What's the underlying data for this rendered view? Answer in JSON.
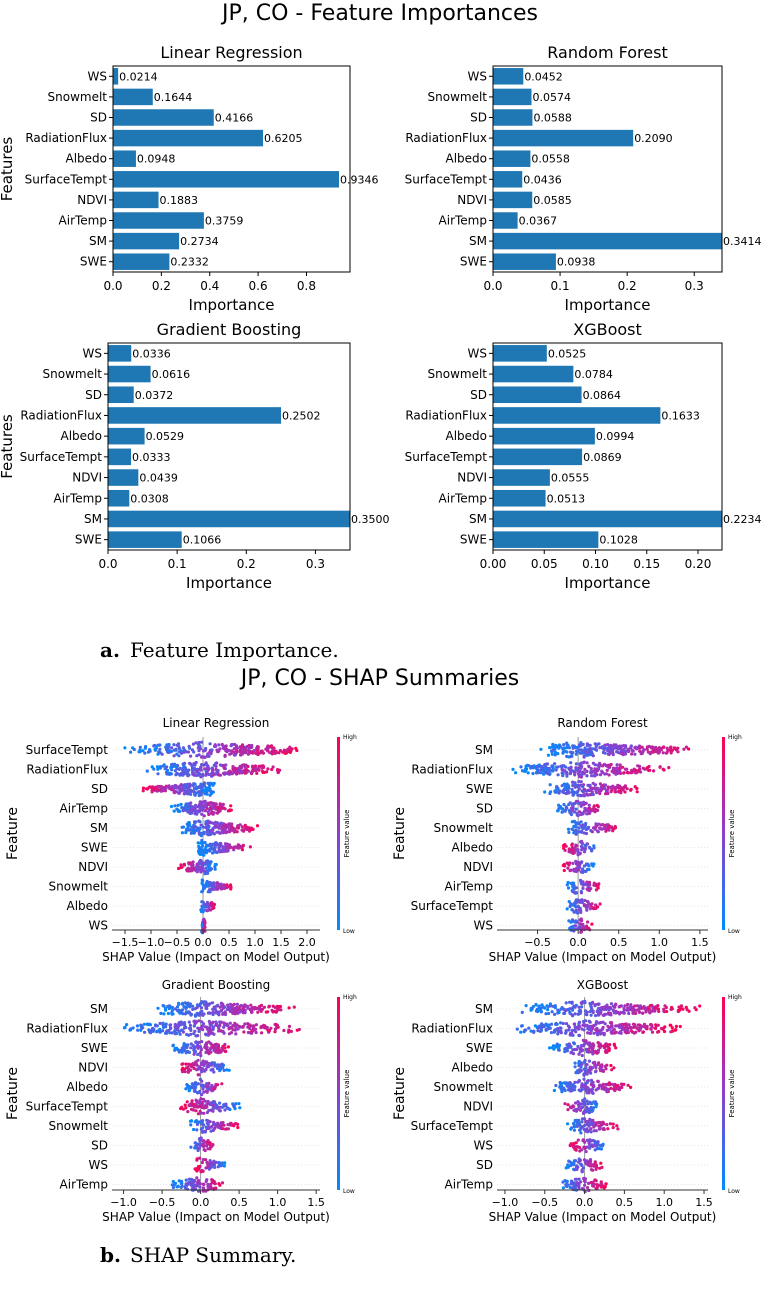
{
  "figure_a": {
    "title": "JP, CO - Feature Importances",
    "caption_letter": "a.",
    "caption_text": "Feature Importance."
  },
  "figure_b": {
    "title": "JP, CO - SHAP Summaries",
    "caption_letter": "b.",
    "caption_text": "SHAP Summary."
  },
  "colors": {
    "bar": "#1f77b4",
    "shap_high": "#ff0052",
    "shap_low": "#008bfb"
  },
  "chart_data": [
    {
      "type": "bar",
      "orientation": "horizontal",
      "title": "Linear Regression",
      "xlabel": "Importance",
      "ylabel": "Features",
      "categories": [
        "WS",
        "Snowmelt",
        "SD",
        "RadiationFlux",
        "Albedo",
        "SurfaceTempt",
        "NDVI",
        "AirTemp",
        "SM",
        "SWE"
      ],
      "values": [
        0.0214,
        0.1644,
        0.4166,
        0.6205,
        0.0948,
        0.9346,
        0.1883,
        0.3759,
        0.2734,
        0.2332
      ],
      "labels": [
        "0.0214",
        "0.1644",
        "0.4166",
        "0.6205",
        "0.0948",
        "0.9346",
        "0.1883",
        "0.3759",
        "0.2734",
        "0.2332"
      ],
      "xlim": [
        0,
        0.98
      ],
      "xticks": [
        0,
        0.2,
        0.4,
        0.6,
        0.8
      ],
      "xtick_labels": [
        "0.0",
        "0.2",
        "0.4",
        "0.6",
        "0.8"
      ]
    },
    {
      "type": "bar",
      "orientation": "horizontal",
      "title": "Random Forest",
      "xlabel": "Importance",
      "ylabel": "",
      "categories": [
        "WS",
        "Snowmelt",
        "SD",
        "RadiationFlux",
        "Albedo",
        "SurfaceTempt",
        "NDVI",
        "AirTemp",
        "SM",
        "SWE"
      ],
      "values": [
        0.0452,
        0.0574,
        0.0588,
        0.209,
        0.0558,
        0.0436,
        0.0585,
        0.0367,
        0.3414,
        0.0938
      ],
      "labels": [
        "0.0452",
        "0.0574",
        "0.0588",
        "0.2090",
        "0.0558",
        "0.0436",
        "0.0585",
        "0.0367",
        "0.3414",
        "0.0938"
      ],
      "xlim": [
        0,
        0.3414
      ],
      "xticks": [
        0,
        0.1,
        0.2,
        0.3
      ],
      "xtick_labels": [
        "0.0",
        "0.1",
        "0.2",
        "0.3"
      ]
    },
    {
      "type": "bar",
      "orientation": "horizontal",
      "title": "Gradient Boosting",
      "xlabel": "Importance",
      "ylabel": "Features",
      "categories": [
        "WS",
        "Snowmelt",
        "SD",
        "RadiationFlux",
        "Albedo",
        "SurfaceTempt",
        "NDVI",
        "AirTemp",
        "SM",
        "SWE"
      ],
      "values": [
        0.0336,
        0.0616,
        0.0372,
        0.2502,
        0.0529,
        0.0333,
        0.0439,
        0.0308,
        0.35,
        0.1066
      ],
      "labels": [
        "0.0336",
        "0.0616",
        "0.0372",
        "0.2502",
        "0.0529",
        "0.0333",
        "0.0439",
        "0.0308",
        "0.3500",
        "0.1066"
      ],
      "xlim": [
        0,
        0.35
      ],
      "xticks": [
        0,
        0.1,
        0.2,
        0.3
      ],
      "xtick_labels": [
        "0.0",
        "0.1",
        "0.2",
        "0.3"
      ]
    },
    {
      "type": "bar",
      "orientation": "horizontal",
      "title": "XGBoost",
      "xlabel": "Importance",
      "ylabel": "",
      "categories": [
        "WS",
        "Snowmelt",
        "SD",
        "RadiationFlux",
        "Albedo",
        "SurfaceTempt",
        "NDVI",
        "AirTemp",
        "SM",
        "SWE"
      ],
      "values": [
        0.0525,
        0.0784,
        0.0864,
        0.1633,
        0.0994,
        0.0869,
        0.0555,
        0.0513,
        0.2234,
        0.1028
      ],
      "labels": [
        "0.0525",
        "0.0784",
        "0.0864",
        "0.1633",
        "0.0994",
        "0.0869",
        "0.0555",
        "0.0513",
        "0.2234",
        "0.1028"
      ],
      "xlim": [
        0,
        0.2234
      ],
      "xticks": [
        0,
        0.05,
        0.1,
        0.15,
        0.2
      ],
      "xtick_labels": [
        "0.00",
        "0.05",
        "0.10",
        "0.15",
        "0.20"
      ]
    },
    {
      "type": "scatter",
      "subtype": "shap-beeswarm",
      "title": "Linear Regression",
      "xlabel": "SHAP Value (Impact on Model Output)",
      "ylabel": "Feature",
      "colorbar_label": "Feature value",
      "colorbar_high": "High",
      "colorbar_low": "Low",
      "xlim": [
        -1.75,
        2.25
      ],
      "xticks": [
        -1.5,
        -1,
        -0.5,
        0,
        0.5,
        1,
        1.5,
        2
      ],
      "xtick_labels": [
        "−1.5",
        "−1.0",
        "−0.5",
        "0.0",
        "0.5",
        "1.0",
        "1.5",
        "2.0"
      ],
      "features": [
        {
          "name": "SurfaceTempt",
          "range": [
            -1.55,
            2.1
          ],
          "mode": "posHigh"
        },
        {
          "name": "RadiationFlux",
          "range": [
            -1.1,
            1.6
          ],
          "mode": "posHigh"
        },
        {
          "name": "SD",
          "range": [
            -1.2,
            0.25
          ],
          "mode": "negHigh"
        },
        {
          "name": "AirTemp",
          "range": [
            -0.65,
            0.6
          ],
          "mode": "posHigh"
        },
        {
          "name": "SM",
          "range": [
            -0.45,
            1.1
          ],
          "mode": "posHigh"
        },
        {
          "name": "SWE",
          "range": [
            -0.1,
            0.95
          ],
          "mode": "posHigh"
        },
        {
          "name": "NDVI",
          "range": [
            -0.5,
            0.3
          ],
          "mode": "negHigh"
        },
        {
          "name": "Snowmelt",
          "range": [
            -0.05,
            0.6
          ],
          "mode": "posHigh"
        },
        {
          "name": "Albedo",
          "range": [
            -0.05,
            0.25
          ],
          "mode": "posHigh"
        },
        {
          "name": "WS",
          "range": [
            -0.03,
            0.05
          ],
          "mode": "posHigh"
        }
      ]
    },
    {
      "type": "scatter",
      "subtype": "shap-beeswarm",
      "title": "Random Forest",
      "xlabel": "SHAP Value (Impact on Model Output)",
      "ylabel": "Feature",
      "colorbar_label": "Feature value",
      "colorbar_high": "High",
      "colorbar_low": "Low",
      "xlim": [
        -1.0,
        1.6
      ],
      "xticks": [
        -0.5,
        0,
        0.5,
        1,
        1.5
      ],
      "xtick_labels": [
        "−0.5",
        "0.0",
        "0.5",
        "1.0",
        "1.5"
      ],
      "features": [
        {
          "name": "SM",
          "range": [
            -0.5,
            1.5
          ],
          "mode": "posHigh"
        },
        {
          "name": "RadiationFlux",
          "range": [
            -0.85,
            1.15
          ],
          "mode": "posHigh"
        },
        {
          "name": "SWE",
          "range": [
            -0.45,
            0.8
          ],
          "mode": "posHigh"
        },
        {
          "name": "SD",
          "range": [
            -0.3,
            0.35
          ],
          "mode": "posHigh"
        },
        {
          "name": "Snowmelt",
          "range": [
            -0.15,
            0.55
          ],
          "mode": "posHigh"
        },
        {
          "name": "Albedo",
          "range": [
            -0.2,
            0.25
          ],
          "mode": "negHigh"
        },
        {
          "name": "NDVI",
          "range": [
            -0.2,
            0.2
          ],
          "mode": "negHigh"
        },
        {
          "name": "AirTemp",
          "range": [
            -0.15,
            0.3
          ],
          "mode": "posHigh"
        },
        {
          "name": "SurfaceTempt",
          "range": [
            -0.15,
            0.3
          ],
          "mode": "posHigh"
        },
        {
          "name": "WS",
          "range": [
            -0.15,
            0.2
          ],
          "mode": "posHigh"
        }
      ]
    },
    {
      "type": "scatter",
      "subtype": "shap-beeswarm",
      "title": "Gradient Boosting",
      "xlabel": "SHAP Value (Impact on Model Output)",
      "ylabel": "Feature",
      "colorbar_label": "Feature value",
      "colorbar_high": "High",
      "colorbar_low": "Low",
      "xlim": [
        -1.15,
        1.55
      ],
      "xticks": [
        -1,
        -0.5,
        0,
        0.5,
        1,
        1.5
      ],
      "xtick_labels": [
        "−1.0",
        "−0.5",
        "0.0",
        "0.5",
        "1.0",
        "1.5"
      ],
      "features": [
        {
          "name": "SM",
          "range": [
            -0.6,
            1.25
          ],
          "mode": "posHigh"
        },
        {
          "name": "RadiationFlux",
          "range": [
            -1.1,
            1.45
          ],
          "mode": "posHigh"
        },
        {
          "name": "SWE",
          "range": [
            -0.4,
            0.45
          ],
          "mode": "posHigh"
        },
        {
          "name": "NDVI",
          "range": [
            -0.3,
            0.4
          ],
          "mode": "negHigh"
        },
        {
          "name": "Albedo",
          "range": [
            -0.2,
            0.35
          ],
          "mode": "posHigh"
        },
        {
          "name": "SurfaceTempt",
          "range": [
            -0.3,
            0.55
          ],
          "mode": "negHigh"
        },
        {
          "name": "Snowmelt",
          "range": [
            -0.15,
            0.5
          ],
          "mode": "posHigh"
        },
        {
          "name": "SD",
          "range": [
            -0.15,
            0.2
          ],
          "mode": "posHigh"
        },
        {
          "name": "WS",
          "range": [
            -0.1,
            0.35
          ],
          "mode": "negHigh"
        },
        {
          "name": "AirTemp",
          "range": [
            -0.4,
            0.35
          ],
          "mode": "posHigh"
        }
      ]
    },
    {
      "type": "scatter",
      "subtype": "shap-beeswarm",
      "title": "XGBoost",
      "xlabel": "SHAP Value (Impact on Model Output)",
      "ylabel": "Feature",
      "colorbar_label": "Feature value",
      "colorbar_high": "High",
      "colorbar_low": "Low",
      "xlim": [
        -1.1,
        1.55
      ],
      "xticks": [
        -1,
        -0.5,
        0,
        0.5,
        1,
        1.5
      ],
      "xtick_labels": [
        "−1.0",
        "−0.5",
        "0.0",
        "0.5",
        "1.0",
        "1.5"
      ],
      "features": [
        {
          "name": "SM",
          "range": [
            -0.85,
            1.45
          ],
          "mode": "posHigh"
        },
        {
          "name": "RadiationFlux",
          "range": [
            -0.95,
            1.25
          ],
          "mode": "posHigh"
        },
        {
          "name": "SWE",
          "range": [
            -0.45,
            0.45
          ],
          "mode": "posHigh"
        },
        {
          "name": "Albedo",
          "range": [
            -0.2,
            0.4
          ],
          "mode": "posHigh"
        },
        {
          "name": "Snowmelt",
          "range": [
            -0.45,
            0.6
          ],
          "mode": "posHigh"
        },
        {
          "name": "NDVI",
          "range": [
            -0.3,
            0.2
          ],
          "mode": "negHigh"
        },
        {
          "name": "SurfaceTempt",
          "range": [
            -0.25,
            0.45
          ],
          "mode": "posHigh"
        },
        {
          "name": "WS",
          "range": [
            -0.2,
            0.3
          ],
          "mode": "negHigh"
        },
        {
          "name": "SD",
          "range": [
            -0.25,
            0.25
          ],
          "mode": "posHigh"
        },
        {
          "name": "AirTemp",
          "range": [
            -0.35,
            0.3
          ],
          "mode": "posHigh"
        }
      ]
    }
  ]
}
